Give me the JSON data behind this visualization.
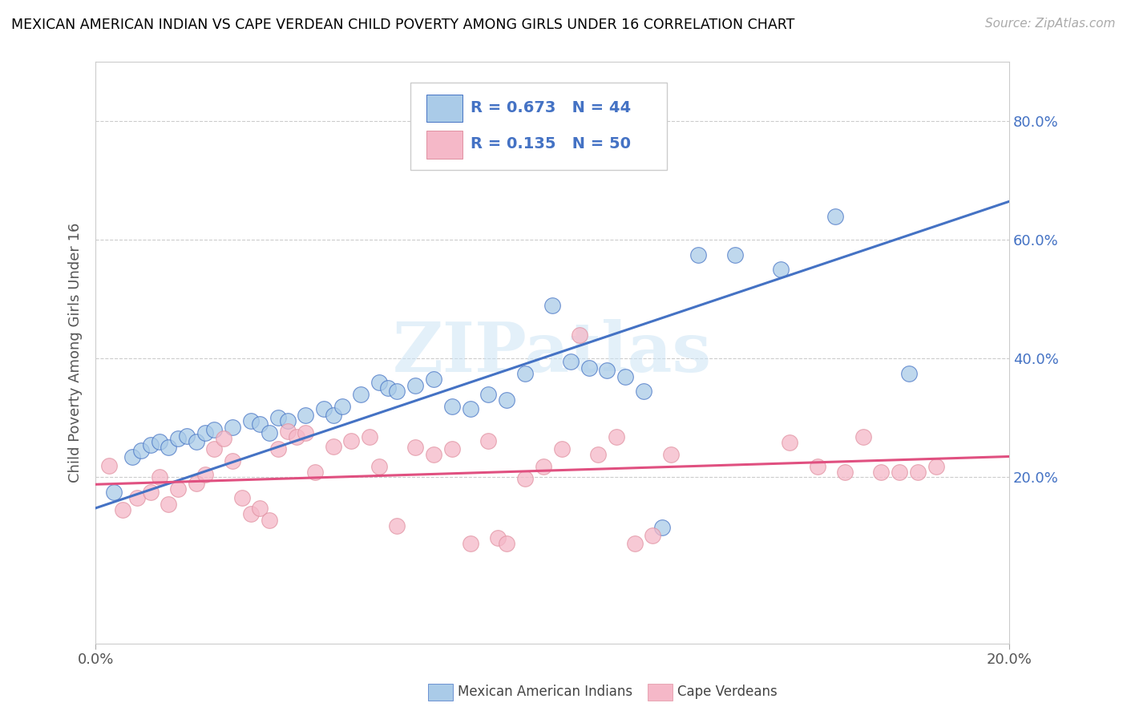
{
  "title": "MEXICAN AMERICAN INDIAN VS CAPE VERDEAN CHILD POVERTY AMONG GIRLS UNDER 16 CORRELATION CHART",
  "source": "Source: ZipAtlas.com",
  "ylabel": "Child Poverty Among Girls Under 16",
  "x_tick_labels": [
    "0.0%",
    "20.0%"
  ],
  "y_tick_labels_right": [
    "20.0%",
    "40.0%",
    "60.0%",
    "80.0%"
  ],
  "blue_R": 0.673,
  "blue_N": 44,
  "pink_R": 0.135,
  "pink_N": 50,
  "blue_color": "#aacbe8",
  "pink_color": "#f5b8c8",
  "line_blue": "#4472c4",
  "line_pink": "#e05080",
  "watermark": "ZIPatlas",
  "blue_scatter_x": [
    0.004,
    0.008,
    0.01,
    0.012,
    0.014,
    0.016,
    0.018,
    0.02,
    0.022,
    0.024,
    0.026,
    0.03,
    0.034,
    0.036,
    0.038,
    0.04,
    0.042,
    0.046,
    0.05,
    0.052,
    0.054,
    0.058,
    0.062,
    0.064,
    0.066,
    0.07,
    0.074,
    0.078,
    0.082,
    0.086,
    0.09,
    0.094,
    0.1,
    0.104,
    0.108,
    0.112,
    0.116,
    0.12,
    0.124,
    0.132,
    0.14,
    0.15,
    0.162,
    0.178
  ],
  "blue_scatter_y": [
    0.175,
    0.235,
    0.245,
    0.255,
    0.26,
    0.25,
    0.265,
    0.27,
    0.26,
    0.275,
    0.28,
    0.285,
    0.295,
    0.29,
    0.275,
    0.3,
    0.295,
    0.305,
    0.315,
    0.305,
    0.32,
    0.34,
    0.36,
    0.35,
    0.345,
    0.355,
    0.365,
    0.32,
    0.315,
    0.34,
    0.33,
    0.375,
    0.49,
    0.395,
    0.385,
    0.38,
    0.37,
    0.345,
    0.115,
    0.575,
    0.575,
    0.55,
    0.64,
    0.375
  ],
  "pink_scatter_x": [
    0.003,
    0.006,
    0.009,
    0.012,
    0.014,
    0.016,
    0.018,
    0.022,
    0.024,
    0.026,
    0.028,
    0.03,
    0.032,
    0.034,
    0.036,
    0.038,
    0.04,
    0.042,
    0.044,
    0.046,
    0.048,
    0.052,
    0.056,
    0.06,
    0.062,
    0.066,
    0.07,
    0.074,
    0.078,
    0.082,
    0.086,
    0.088,
    0.09,
    0.094,
    0.098,
    0.102,
    0.106,
    0.11,
    0.114,
    0.118,
    0.122,
    0.126,
    0.152,
    0.158,
    0.164,
    0.168,
    0.172,
    0.176,
    0.18,
    0.184
  ],
  "pink_scatter_y": [
    0.22,
    0.145,
    0.165,
    0.175,
    0.2,
    0.155,
    0.18,
    0.19,
    0.205,
    0.248,
    0.265,
    0.228,
    0.165,
    0.138,
    0.148,
    0.128,
    0.248,
    0.278,
    0.268,
    0.275,
    0.208,
    0.252,
    0.262,
    0.268,
    0.218,
    0.118,
    0.25,
    0.238,
    0.248,
    0.088,
    0.262,
    0.098,
    0.088,
    0.198,
    0.218,
    0.248,
    0.44,
    0.238,
    0.268,
    0.088,
    0.102,
    0.238,
    0.258,
    0.218,
    0.208,
    0.268,
    0.208,
    0.208,
    0.208,
    0.218
  ],
  "xlim": [
    0.0,
    0.2
  ],
  "ylim": [
    -0.08,
    0.9
  ],
  "y_ticks": [
    0.2,
    0.4,
    0.6,
    0.8
  ],
  "x_ticks": [
    0.0,
    0.2
  ],
  "blue_line_x0": 0.0,
  "blue_line_y0": 0.148,
  "blue_line_x1": 0.2,
  "blue_line_y1": 0.665,
  "pink_line_x0": 0.0,
  "pink_line_y0": 0.188,
  "pink_line_x1": 0.2,
  "pink_line_y1": 0.235
}
